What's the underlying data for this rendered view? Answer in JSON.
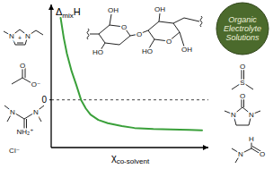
{
  "chart_data": {
    "type": "line",
    "title": "Organic Electrolyte Solutions",
    "xlabel": "χco-solvent",
    "ylabel": "ΔmixH",
    "x": [
      0.06,
      0.08,
      0.1,
      0.13,
      0.16,
      0.19,
      0.22,
      0.25,
      0.3,
      0.36,
      0.45,
      0.53,
      0.65,
      0.76,
      0.88,
      0.96
    ],
    "values": [
      1.72,
      1.3,
      0.97,
      0.6,
      0.31,
      0.0,
      -0.18,
      -0.31,
      -0.42,
      -0.49,
      -0.55,
      -0.59,
      -0.61,
      -0.62,
      -0.63,
      -0.64
    ],
    "color": "#3aa03a",
    "xlim": [
      0,
      1
    ],
    "ylim": [
      -1,
      2
    ],
    "xticks": [],
    "yticks": [
      0
    ],
    "grid": true,
    "tick_labels": "y",
    "annotations": [
      "N",
      "N",
      "+",
      "O",
      "O⁻",
      "N",
      "N",
      "NH₂⁺",
      "Cl⁻",
      "O",
      "O",
      "O",
      "OH",
      "HO",
      "OH",
      "HO",
      "OH",
      "S",
      "O",
      "N",
      "N",
      "O",
      "N",
      "H",
      "O"
    ]
  }
}
